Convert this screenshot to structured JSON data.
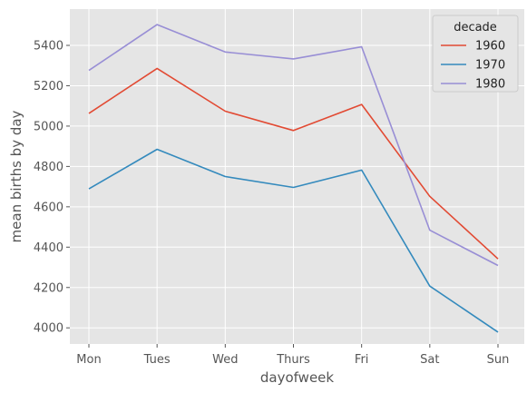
{
  "chart_data": {
    "type": "line",
    "categories": [
      "Mon",
      "Tues",
      "Wed",
      "Thurs",
      "Fri",
      "Sat",
      "Sun"
    ],
    "series": [
      {
        "name": "1960",
        "color": "#E24A33",
        "values": [
          5063,
          5286,
          5074,
          4978,
          5107,
          4652,
          4342
        ]
      },
      {
        "name": "1970",
        "color": "#348ABD",
        "values": [
          4689,
          4885,
          4750,
          4696,
          4782,
          4207,
          3979
        ]
      },
      {
        "name": "1980",
        "color": "#988ED5",
        "values": [
          5276,
          5503,
          5367,
          5333,
          5393,
          4484,
          4309
        ]
      }
    ],
    "xlabel": "dayofweek",
    "ylabel": "mean births by day",
    "ylim": [
      3920,
      5580
    ],
    "yticks": [
      4000,
      4200,
      4400,
      4600,
      4800,
      5000,
      5200,
      5400
    ],
    "legend": {
      "title": "decade",
      "position": "top-right"
    },
    "grid": true,
    "background": "#E5E5E5"
  }
}
